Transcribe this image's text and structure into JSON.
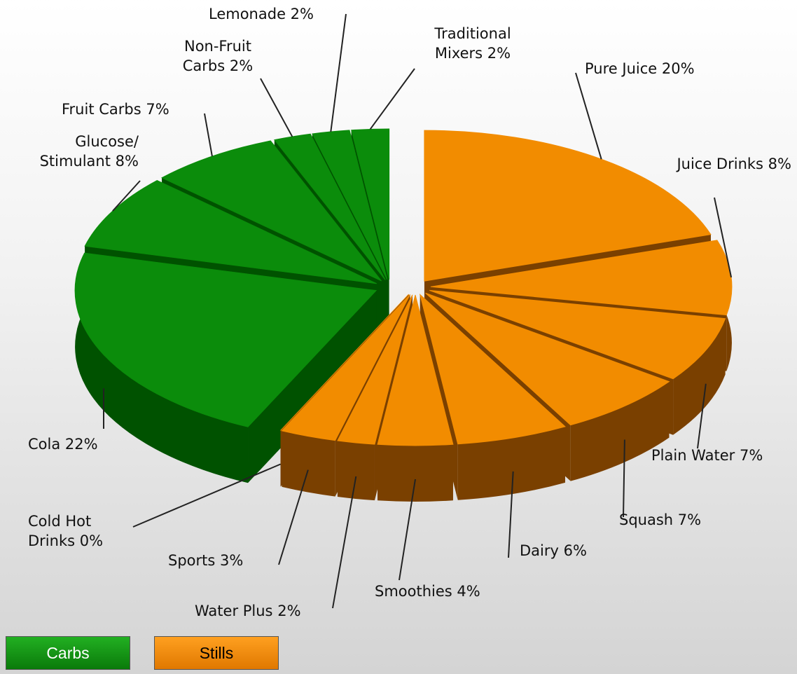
{
  "chart_data": {
    "type": "pie3d",
    "series": [
      {
        "name": "Carbs",
        "color": "#0b8c0b",
        "categories": [
          "Cola",
          "Glucose/ Stimulant",
          "Fruit Carbs",
          "Non-Fruit Carbs",
          "Lemonade",
          "Traditional Mixers"
        ],
        "values": [
          22,
          8,
          7,
          2,
          2,
          2
        ],
        "value_labels": [
          "22%",
          "8%",
          "7%",
          "2%",
          "2%",
          "2%"
        ]
      },
      {
        "name": "Stills",
        "color": "#f28c00",
        "categories": [
          "Pure Juice",
          "Juice Drinks",
          "Plain Water",
          "Squash",
          "Dairy",
          "Smoothies",
          "Water Plus",
          "Sports",
          "Cold Hot Drinks"
        ],
        "values": [
          20,
          8,
          7,
          7,
          6,
          4,
          2,
          3,
          0
        ],
        "value_labels": [
          "20%",
          "8%",
          "7%",
          "7%",
          "6%",
          "4%",
          "2%",
          "3%",
          "0%"
        ]
      }
    ]
  }
}
